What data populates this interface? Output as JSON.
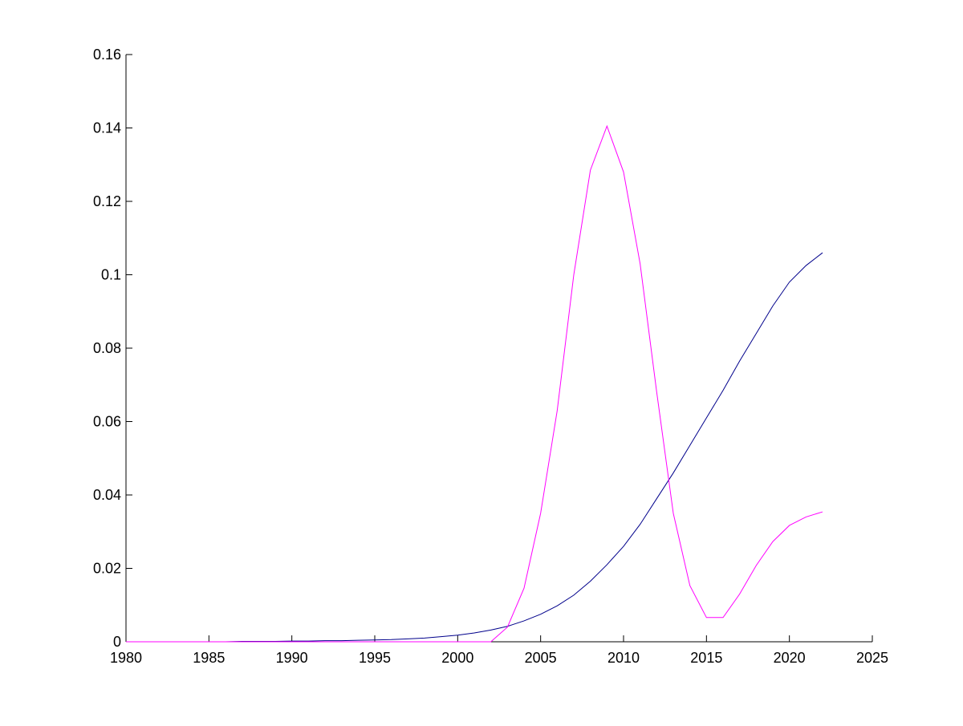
{
  "chart_data": {
    "type": "line",
    "x": [
      1980,
      1981,
      1982,
      1983,
      1984,
      1985,
      1986,
      1987,
      1988,
      1989,
      1990,
      1991,
      1992,
      1993,
      1994,
      1995,
      1996,
      1997,
      1998,
      1999,
      2000,
      2001,
      2002,
      2003,
      2004,
      2005,
      2006,
      2007,
      2008,
      2009,
      2010,
      2011,
      2012,
      2013,
      2014,
      2015,
      2016,
      2017,
      2018,
      2019,
      2020,
      2021,
      2022
    ],
    "series": [
      {
        "color": "#00008b",
        "values": [
          0,
          0,
          0,
          0,
          0,
          0,
          0,
          0.0001,
          0.0001,
          0.0001,
          0.0002,
          0.0002,
          0.0003,
          0.0003,
          0.0004,
          0.0005,
          0.0006,
          0.0008,
          0.001,
          0.0014,
          0.0018,
          0.0024,
          0.0032,
          0.0042,
          0.0057,
          0.0075,
          0.0098,
          0.0127,
          0.0165,
          0.021,
          0.026,
          0.032,
          0.039,
          0.046,
          0.0535,
          0.061,
          0.0685,
          0.0765,
          0.084,
          0.0915,
          0.098,
          0.1025,
          0.106
        ]
      },
      {
        "color": "#ff00ff",
        "values": [
          0,
          0,
          0,
          0,
          0,
          0,
          0,
          0,
          0,
          0,
          0,
          0,
          0,
          0,
          0,
          0,
          0,
          0,
          0,
          0,
          0,
          0,
          0,
          0.004,
          0.0146,
          0.035,
          0.063,
          0.1,
          0.1285,
          0.1405,
          0.128,
          0.103,
          0.068,
          0.035,
          0.0153,
          0.0066,
          0.0066,
          0.013,
          0.0208,
          0.0273,
          0.0317,
          0.034,
          0.0354
        ]
      }
    ],
    "xlim": [
      1980,
      2025
    ],
    "xticks": [
      1980,
      1985,
      1990,
      1995,
      2000,
      2005,
      2010,
      2015,
      2020,
      2025
    ],
    "ylim": [
      0,
      0.16
    ],
    "yticks": [
      0,
      0.02,
      0.04,
      0.06,
      0.08,
      0.1,
      0.12,
      0.14,
      0.16
    ],
    "grid": false
  }
}
